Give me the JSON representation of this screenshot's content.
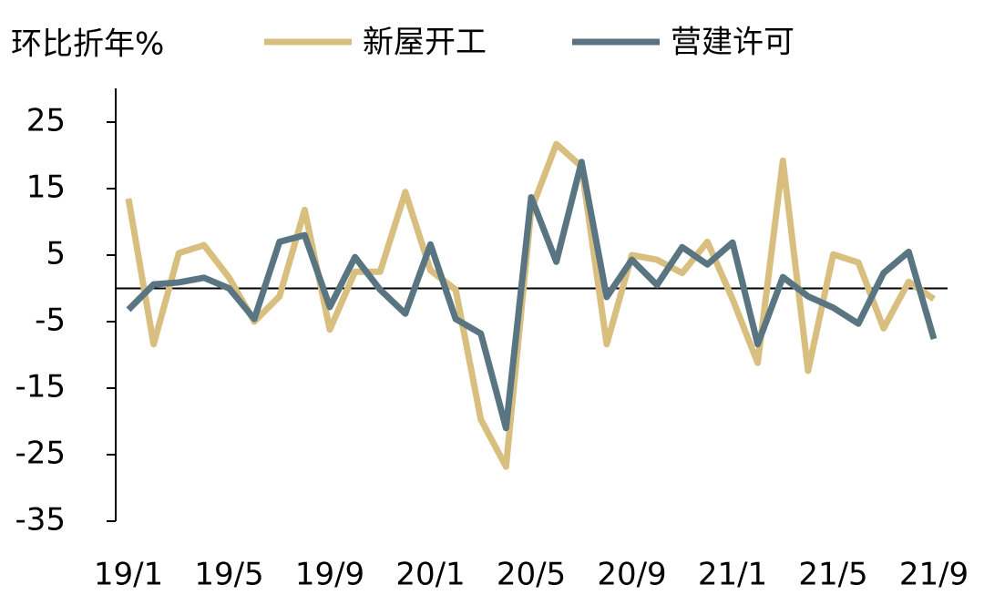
{
  "chart_data": {
    "type": "line",
    "y_label": "环比折年%",
    "categories": [
      "19/1",
      null,
      null,
      null,
      "19/5",
      null,
      null,
      null,
      "19/9",
      null,
      null,
      null,
      "20/1",
      null,
      null,
      null,
      "20/5",
      null,
      null,
      null,
      "20/9",
      null,
      null,
      null,
      "21/1",
      null,
      null,
      null,
      "21/5",
      null,
      null,
      null,
      "21/9"
    ],
    "series": [
      {
        "name": "新屋开工",
        "color": "#d9bf7f",
        "values": [
          13.5,
          -8.4,
          5.3,
          6.5,
          1.6,
          -5,
          -1.2,
          11.8,
          -6.2,
          2.5,
          2.5,
          14.5,
          2.7,
          -0.2,
          -19.7,
          -26.8,
          11.8,
          21.7,
          18.3,
          -8.4,
          5,
          4.3,
          2.3,
          7,
          -1.6,
          -11.2,
          19.2,
          -12.4,
          5.1,
          3.9,
          -6,
          1,
          -1.6
        ]
      },
      {
        "name": "营建许可",
        "color": "#5a7582",
        "values": [
          -3.2,
          0.6,
          0.9,
          1.6,
          0,
          -4.6,
          7,
          8,
          -2.8,
          4.7,
          -0.2,
          -3.8,
          6.6,
          -4.6,
          -6.8,
          -21,
          13.7,
          4,
          19,
          -1.3,
          4.3,
          0.5,
          6.2,
          3.6,
          6.9,
          -8.4,
          1.7,
          -1.2,
          -2.9,
          -5.3,
          2.3,
          5.5,
          -7.6
        ]
      }
    ],
    "ylim": [
      -35,
      30
    ],
    "yticks": [
      25,
      15,
      5,
      -5,
      -15,
      -25,
      -35
    ]
  }
}
